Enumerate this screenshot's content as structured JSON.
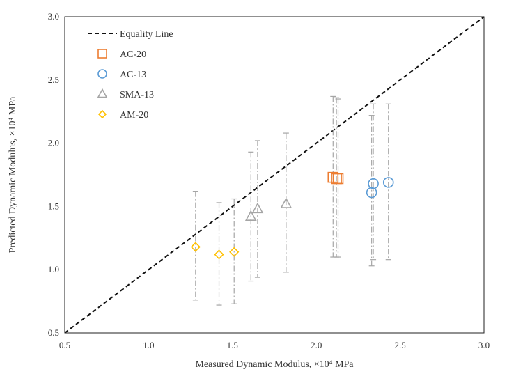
{
  "chart_data": {
    "type": "scatter",
    "xlabel": "Measured Dynamic Modulus, ×10⁴ MPa",
    "ylabel": "Predicted Dynamic Modulus, ×10⁴ MPa",
    "xlim": [
      0.5,
      3.0
    ],
    "ylim": [
      0.5,
      3.0
    ],
    "x_ticks": [
      "0.5",
      "1.0",
      "1.5",
      "2.0",
      "2.5",
      "3.0"
    ],
    "y_ticks": [
      "0.5",
      "1.0",
      "1.5",
      "2.0",
      "2.5",
      "3.0"
    ],
    "grid": false,
    "legend_position": "top-left",
    "equality_line": {
      "label": "Equality Line",
      "from": [
        0.5,
        0.5
      ],
      "to": [
        3.0,
        3.0
      ]
    },
    "series": [
      {
        "name": "AC-20",
        "marker": "square",
        "color": "#ED7D31",
        "points": [
          {
            "x": 2.1,
            "y": 1.73,
            "err_low": 1.1,
            "err_high": 2.37
          },
          {
            "x": 2.12,
            "y": 1.72,
            "err_low": 1.1,
            "err_high": 2.36
          },
          {
            "x": 2.13,
            "y": 1.72,
            "err_low": 1.1,
            "err_high": 2.35
          }
        ]
      },
      {
        "name": "AC-13",
        "marker": "circle",
        "color": "#5B9BD5",
        "points": [
          {
            "x": 2.33,
            "y": 1.61,
            "err_low": 1.03,
            "err_high": 2.22
          },
          {
            "x": 2.34,
            "y": 1.68,
            "err_low": 1.08,
            "err_high": 2.31
          },
          {
            "x": 2.43,
            "y": 1.69,
            "err_low": 1.08,
            "err_high": 2.31
          }
        ]
      },
      {
        "name": "SMA-13",
        "marker": "triangle",
        "color": "#A5A5A5",
        "points": [
          {
            "x": 1.61,
            "y": 1.42,
            "err_low": 0.91,
            "err_high": 1.93
          },
          {
            "x": 1.65,
            "y": 1.48,
            "err_low": 0.94,
            "err_high": 2.02
          },
          {
            "x": 1.82,
            "y": 1.52,
            "err_low": 0.98,
            "err_high": 2.08
          }
        ]
      },
      {
        "name": "AM-20",
        "marker": "diamond",
        "color": "#FFC000",
        "points": [
          {
            "x": 1.28,
            "y": 1.18,
            "err_low": 0.76,
            "err_high": 1.62
          },
          {
            "x": 1.42,
            "y": 1.12,
            "err_low": 0.72,
            "err_high": 1.53
          },
          {
            "x": 1.51,
            "y": 1.14,
            "err_low": 0.73,
            "err_high": 1.56
          }
        ]
      }
    ],
    "errorbar_color": "#A5A5A5"
  }
}
